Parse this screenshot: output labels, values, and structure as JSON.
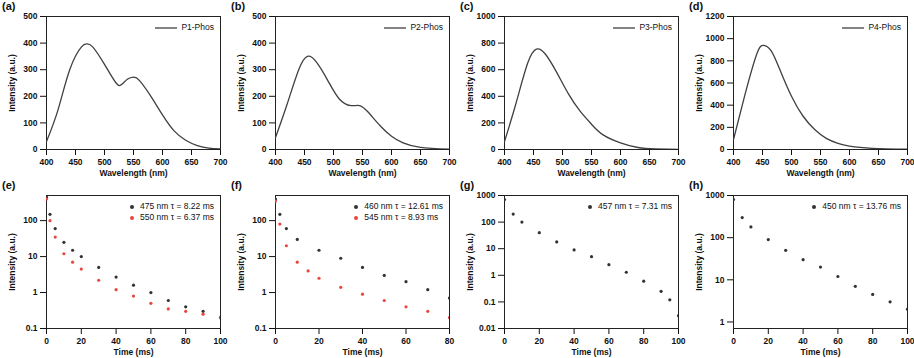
{
  "chart_data": [
    {
      "type": "line",
      "title": "(a)",
      "xlabel": "Wavelength (nm)",
      "ylabel": "Intensity (a.u.)",
      "xlim": [
        400,
        700
      ],
      "xticks": [
        400,
        450,
        500,
        550,
        600,
        650,
        700
      ],
      "ylim": [
        0,
        500
      ],
      "yticks": [
        0,
        100,
        200,
        300,
        400,
        500
      ],
      "legend": "upper right",
      "series": [
        {
          "name": "P1-Phos",
          "color": "#404040",
          "type": "line",
          "x": [
            400,
            420,
            440,
            460,
            470,
            480,
            500,
            520,
            530,
            540,
            550,
            560,
            580,
            600,
            620,
            640,
            660,
            680,
            700
          ],
          "values": [
            30,
            150,
            300,
            385,
            397,
            385,
            320,
            250,
            245,
            265,
            272,
            260,
            200,
            130,
            70,
            35,
            15,
            5,
            2
          ]
        }
      ]
    },
    {
      "type": "line",
      "title": "(b)",
      "xlabel": "Wavelength (nm)",
      "ylabel": "Intensity (a.u.)",
      "xlim": [
        400,
        700
      ],
      "xticks": [
        400,
        450,
        500,
        550,
        600,
        650,
        700
      ],
      "ylim": [
        0,
        500
      ],
      "yticks": [
        0,
        100,
        200,
        300,
        400,
        500
      ],
      "legend": "upper right",
      "series": [
        {
          "name": "P2-Phos",
          "color": "#404040",
          "type": "line",
          "x": [
            400,
            420,
            440,
            455,
            470,
            490,
            510,
            530,
            545,
            560,
            580,
            600,
            620,
            650,
            700
          ],
          "values": [
            45,
            170,
            300,
            350,
            330,
            260,
            190,
            165,
            165,
            140,
            90,
            50,
            25,
            8,
            1
          ]
        }
      ]
    },
    {
      "type": "line",
      "title": "(c)",
      "xlabel": "Wavelength (nm)",
      "ylabel": "Intensity (a.u.)",
      "xlim": [
        400,
        700
      ],
      "xticks": [
        400,
        450,
        500,
        550,
        600,
        650,
        700
      ],
      "ylim": [
        0,
        1000
      ],
      "yticks": [
        0,
        200,
        400,
        600,
        800,
        1000
      ],
      "legend": "upper right",
      "series": [
        {
          "name": "P3-Phos",
          "color": "#404040",
          "type": "line",
          "x": [
            400,
            420,
            440,
            455,
            470,
            490,
            510,
            530,
            550,
            570,
            600,
            630,
            660,
            700
          ],
          "values": [
            60,
            350,
            650,
            755,
            720,
            580,
            420,
            290,
            190,
            110,
            50,
            15,
            4,
            0
          ]
        }
      ]
    },
    {
      "type": "line",
      "title": "(d)",
      "xlabel": "Wavelength (nm)",
      "ylabel": "Intensity (a.u.)",
      "xlim": [
        400,
        700
      ],
      "xticks": [
        400,
        450,
        500,
        550,
        600,
        650,
        700
      ],
      "ylim": [
        0,
        1200
      ],
      "yticks": [
        0,
        200,
        400,
        600,
        800,
        1000,
        1200
      ],
      "legend": "upper right",
      "series": [
        {
          "name": "P4-Phos",
          "color": "#404040",
          "type": "line",
          "x": [
            400,
            420,
            440,
            452,
            465,
            480,
            500,
            520,
            540,
            560,
            580,
            600,
            640,
            700
          ],
          "values": [
            90,
            500,
            860,
            940,
            890,
            720,
            480,
            300,
            180,
            100,
            55,
            30,
            10,
            2
          ]
        }
      ]
    },
    {
      "type": "scatter",
      "title": "(e)",
      "xlabel": "Time (ms)",
      "ylabel": "Intensity (a.u.)",
      "log": "y",
      "xlim": [
        0,
        100
      ],
      "xticks": [
        0,
        20,
        40,
        60,
        80,
        100
      ],
      "ylim": [
        0.1,
        500
      ],
      "yticks": [
        0.1,
        1,
        10,
        100
      ],
      "legend": "upper right",
      "series": [
        {
          "name": "475 nm  τ = 8.22 ms",
          "color": "#333333",
          "type": "scatter",
          "marker": "circle",
          "x": [
            0,
            2,
            5,
            10,
            15,
            20,
            30,
            40,
            50,
            60,
            70,
            80,
            90,
            100
          ],
          "values": [
            450,
            150,
            60,
            25,
            15,
            10,
            5,
            2.7,
            1.6,
            1,
            0.6,
            0.4,
            0.3,
            0.2
          ]
        },
        {
          "name": "550 nm  τ = 6.37 ms",
          "color": "#e8473f",
          "type": "scatter",
          "marker": "circle",
          "x": [
            0,
            2,
            5,
            10,
            15,
            20,
            30,
            40,
            50,
            60,
            70,
            80,
            90,
            100
          ],
          "values": [
            400,
            100,
            35,
            12,
            7,
            4.5,
            2.2,
            1.2,
            0.8,
            0.5,
            0.35,
            0.3,
            0.25,
            0.2
          ]
        }
      ]
    },
    {
      "type": "scatter",
      "title": "(f)",
      "xlabel": "Time (ms)",
      "ylabel": "Intensity (a.u.)",
      "log": "y",
      "xlim": [
        0,
        80
      ],
      "xticks": [
        0,
        20,
        40,
        60,
        80
      ],
      "ylim": [
        0.1,
        500
      ],
      "yticks": [
        0.1,
        1,
        10,
        100
      ],
      "legend": "upper right",
      "series": [
        {
          "name": "460 nm  τ = 12.61 ms",
          "color": "#333333",
          "type": "scatter",
          "marker": "circle",
          "x": [
            0,
            2,
            5,
            10,
            20,
            30,
            40,
            50,
            60,
            70,
            80
          ],
          "values": [
            400,
            150,
            60,
            30,
            15,
            9,
            5,
            3,
            2,
            1.2,
            0.7
          ]
        },
        {
          "name": "545 nm  τ = 8.93 ms",
          "color": "#e8473f",
          "type": "scatter",
          "marker": "circle",
          "x": [
            0,
            2,
            5,
            10,
            15,
            20,
            30,
            40,
            50,
            60,
            70,
            80
          ],
          "values": [
            350,
            80,
            20,
            7,
            4,
            2.5,
            1.4,
            0.9,
            0.6,
            0.4,
            0.3,
            0.2
          ]
        }
      ]
    },
    {
      "type": "scatter",
      "title": "(g)",
      "xlabel": "Time (ms)",
      "ylabel": "Intensity (a.u.)",
      "log": "y",
      "xlim": [
        0,
        100
      ],
      "xticks": [
        0,
        20,
        40,
        60,
        80,
        100
      ],
      "ylim": [
        0.01,
        1000
      ],
      "yticks": [
        0.01,
        0.1,
        1,
        10,
        100,
        1000
      ],
      "legend": "upper right",
      "series": [
        {
          "name": "457 nm  τ = 7.31 ms",
          "color": "#333333",
          "type": "scatter",
          "marker": "circle",
          "x": [
            0,
            5,
            10,
            20,
            30,
            40,
            50,
            60,
            70,
            80,
            90,
            95,
            100
          ],
          "values": [
            700,
            200,
            100,
            40,
            18,
            9,
            5,
            2.5,
            1.3,
            0.6,
            0.25,
            0.12,
            0.03
          ]
        }
      ]
    },
    {
      "type": "scatter",
      "title": "(h)",
      "xlabel": "Time (ms)",
      "ylabel": "Intensity (a.u.)",
      "log": "y",
      "xlim": [
        0,
        100
      ],
      "xticks": [
        0,
        20,
        40,
        60,
        80,
        100
      ],
      "ylim": [
        0.7,
        1000
      ],
      "yticks": [
        1,
        10,
        100,
        1000
      ],
      "legend": "upper right",
      "series": [
        {
          "name": "450 nm  τ = 13.76 ms",
          "color": "#333333",
          "type": "scatter",
          "marker": "circle",
          "x": [
            0,
            5,
            10,
            20,
            30,
            40,
            50,
            60,
            70,
            80,
            90,
            100
          ],
          "values": [
            800,
            300,
            180,
            90,
            50,
            30,
            20,
            12,
            7,
            4.5,
            3,
            2
          ]
        }
      ]
    }
  ]
}
